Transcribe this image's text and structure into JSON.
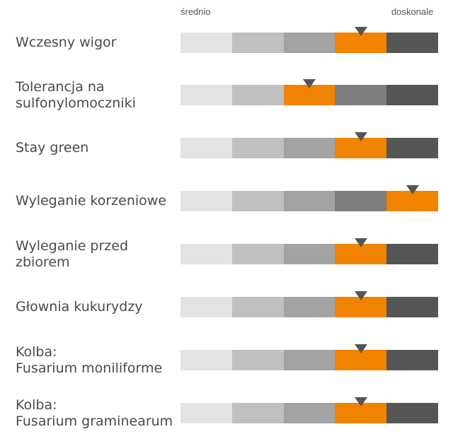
{
  "chart_data": {
    "type": "rating-scale",
    "scale": {
      "low_label": "średnio",
      "high_label": "doskonale",
      "levels": 5
    },
    "colors": {
      "levels": [
        "#e3e3e3",
        "#c0c0c0",
        "#a3a3a3",
        "#7e7e7e",
        "#565656"
      ],
      "selected": "#f08300",
      "marker": "#555555"
    },
    "traits": [
      {
        "label": "Wczesny wigor",
        "rating": 4
      },
      {
        "label": "Tolerancja na\nsulfonylomoczniki",
        "rating": 3
      },
      {
        "label": "Stay green",
        "rating": 4
      },
      {
        "label": "Wyleganie korzeniowe",
        "rating": 5
      },
      {
        "label": "Wyleganie przed\nzbiorem",
        "rating": 4
      },
      {
        "label": "Głownia kukurydzy",
        "rating": 4
      },
      {
        "label": "Kolba:\nFusarium moniliforme",
        "rating": 4
      },
      {
        "label": "Kolba:\nFusarium graminearum",
        "rating": 4
      }
    ]
  }
}
